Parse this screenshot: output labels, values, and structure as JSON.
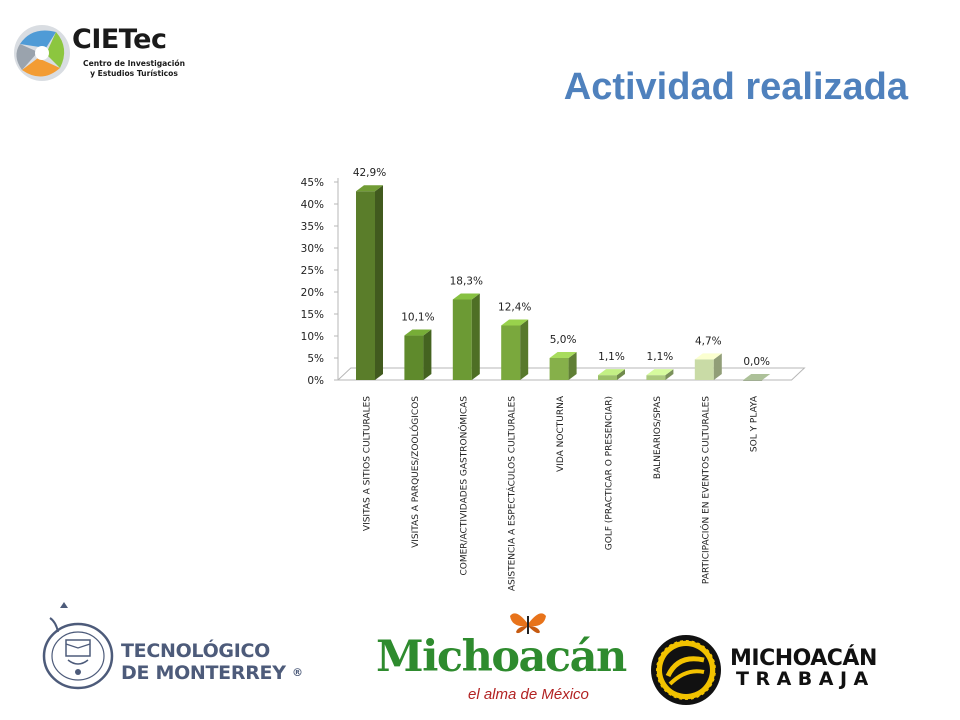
{
  "header": {
    "logo_name": "CIETec",
    "logo_sub_line1": "Centro de Investigación",
    "logo_sub_line2": "y Estudios Turísticos",
    "title": "Actividad realizada"
  },
  "chart_data": {
    "type": "bar",
    "title": "",
    "xlabel": "",
    "ylabel": "",
    "ylim": [
      0,
      45
    ],
    "yticks": [
      0,
      5,
      10,
      15,
      20,
      25,
      30,
      35,
      40,
      45
    ],
    "ytick_labels": [
      "0%",
      "5%",
      "10%",
      "15%",
      "20%",
      "25%",
      "30%",
      "35%",
      "40%",
      "45%"
    ],
    "categories": [
      "VISITAS A SITIOS CULTURALES",
      "VISITAS A PARQUES/ZOOLÓGICOS",
      "COMER/ACTIVIDADES GASTRONÓMICAS",
      "ASISTENCIA A ESPECTÁCULOS CULTURALES",
      "VIDA NOCTURNA",
      "GOLF (PRACTICAR O PRESENCIAR)",
      "BALNEARIOS/SPAS",
      "PARTICIPACIÓN EN EVENTOS CULTURALES",
      "SOL Y PLAYA"
    ],
    "values": [
      42.9,
      10.1,
      18.3,
      12.4,
      5.0,
      1.1,
      1.1,
      4.7,
      0.0
    ],
    "value_labels": [
      "42,9%",
      "10,1%",
      "18,3%",
      "12,4%",
      "5,0%",
      "1,1%",
      "1,1%",
      "4,7%",
      "0,0%"
    ],
    "bar_colors": [
      "#5a7d2a",
      "#5f8a2c",
      "#6c9a34",
      "#7aa83d",
      "#86b04a",
      "#9cc06a",
      "#abc97e",
      "#c9dba6",
      "#8a9a7a"
    ],
    "grid": false,
    "style": "3d-column"
  },
  "footer": {
    "tec_line1": "TECNOLÓGICO",
    "tec_line2": "DE MONTERREY",
    "tec_mark": "®",
    "mich_word": "Michoacán",
    "mich_tagline": "el alma de México",
    "trabaja_line1": "MICHOACÁN",
    "trabaja_line2": "TRABAJA"
  }
}
